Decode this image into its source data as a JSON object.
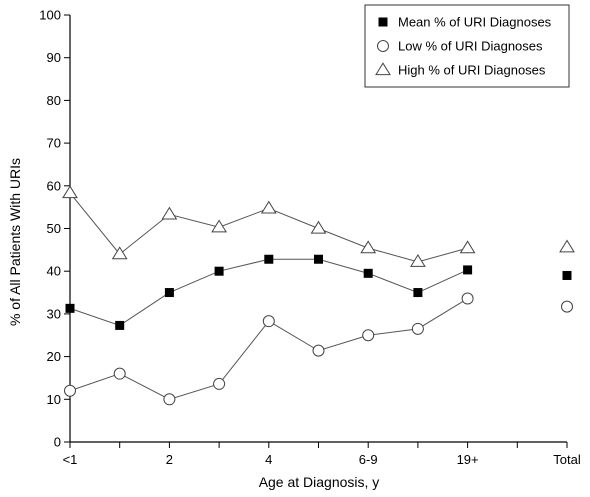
{
  "chart_data": {
    "type": "line",
    "xlabel": "Age at Diagnosis, y",
    "ylabel": "% of All Patients With URIs",
    "ylim": [
      0,
      100
    ],
    "yticks": [
      0,
      10,
      20,
      30,
      40,
      50,
      60,
      70,
      80,
      90,
      100
    ],
    "x_positions": 11,
    "x_tick_labels": [
      {
        "index": 0,
        "label": "<1"
      },
      {
        "index": 2,
        "label": "2"
      },
      {
        "index": 4,
        "label": "4"
      },
      {
        "index": 6,
        "label": "6-9"
      },
      {
        "index": 8,
        "label": "19+"
      },
      {
        "index": 10,
        "label": "Total"
      }
    ],
    "grid": false,
    "legend_position": "top-right",
    "series": [
      {
        "name": "Mean % of URI Diagnoses",
        "marker": "filled-square",
        "values": [
          31.3,
          27.3,
          35,
          40,
          42.8,
          42.8,
          39.5,
          35,
          40.3
        ],
        "total": 39
      },
      {
        "name": "Low % of URI Diagnoses",
        "marker": "open-circle",
        "values": [
          12,
          16,
          10,
          13.6,
          28.3,
          21.4,
          25,
          26.5,
          33.6
        ],
        "total": 31.7
      },
      {
        "name": "High % of URI Diagnoses",
        "marker": "open-triangle",
        "values": [
          58.3,
          44,
          53.3,
          50.3,
          54.7,
          50,
          45.4,
          42.2,
          45.4
        ],
        "total": 45.6
      }
    ]
  }
}
